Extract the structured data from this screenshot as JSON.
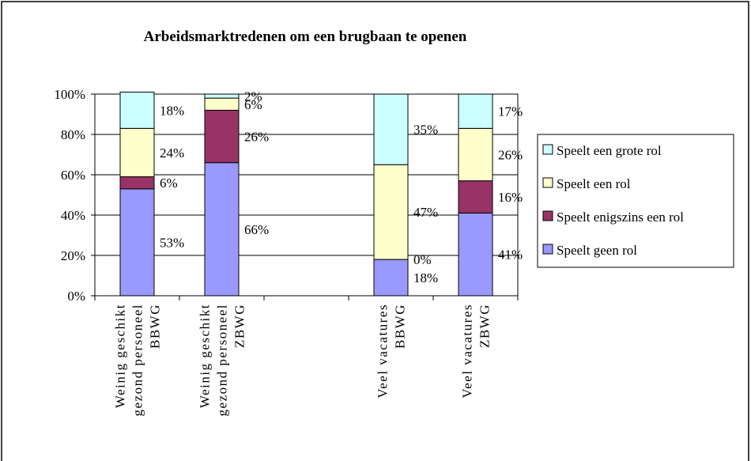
{
  "chart_data": {
    "type": "stacked_bar",
    "title": "Arbeidsmarktredenen om een brugbaan te openen",
    "categories": [
      [
        "Weinig geschikt",
        "gezond personeel",
        "BBWG"
      ],
      [
        "Weinig geschikt",
        "gezond personeel",
        "ZBWG"
      ],
      null,
      [
        "Veel vacatures",
        "BBWG"
      ],
      [
        "Veel vacatures",
        "ZBWG"
      ]
    ],
    "series": [
      {
        "name": "Speelt geen rol",
        "color": "#9999ff",
        "values": [
          53,
          66,
          null,
          18,
          41
        ],
        "value_labels": [
          "53%",
          "66%",
          null,
          "18%",
          "41%"
        ]
      },
      {
        "name": "Speelt enigszins een rol",
        "color": "#993366",
        "values": [
          6,
          26,
          null,
          0,
          16
        ],
        "value_labels": [
          "6%",
          "26%",
          null,
          "0%",
          "16%"
        ]
      },
      {
        "name": "Speelt een rol",
        "color": "#ffffcc",
        "values": [
          24,
          6,
          null,
          47,
          26
        ],
        "value_labels": [
          "24%",
          "6%",
          null,
          "47%",
          "26%"
        ]
      },
      {
        "name": "Speelt een grote rol",
        "color": "#ccffff",
        "values": [
          18,
          2,
          null,
          35,
          17
        ],
        "value_labels": [
          "18%",
          "2%",
          null,
          "35%",
          "17%"
        ]
      }
    ],
    "ylim": [
      0,
      100
    ],
    "yticks": [
      {
        "value": 0,
        "label": "0%"
      },
      {
        "value": 20,
        "label": "20%"
      },
      {
        "value": 40,
        "label": "40%"
      },
      {
        "value": 60,
        "label": "60%"
      },
      {
        "value": 80,
        "label": "80%"
      },
      {
        "value": 100,
        "label": "100%"
      }
    ],
    "grid": true,
    "legend": "right"
  }
}
